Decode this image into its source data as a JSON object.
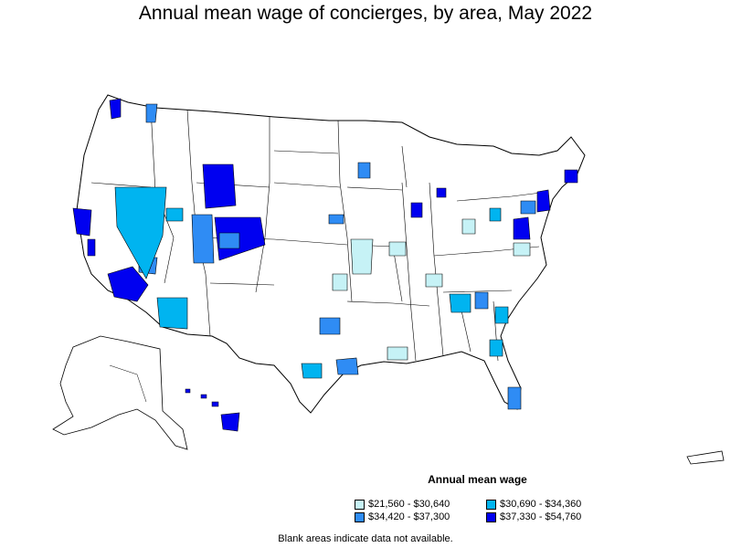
{
  "title": "Annual mean wage of concierges, by area, May 2022",
  "legend": {
    "title": "Annual mean wage",
    "items": [
      {
        "label": "$21,560 - $30,640",
        "color": "#c6f2f6"
      },
      {
        "label": "$30,690 - $34,360",
        "color": "#00b4f0"
      },
      {
        "label": "$34,420 - $37,300",
        "color": "#2f8cf4"
      },
      {
        "label": "$37,330 - $54,760",
        "color": "#0000f0"
      }
    ]
  },
  "footnote": "Blank areas indicate data not available.",
  "colors": {
    "land": "#ffffff",
    "border": "#000000"
  }
}
